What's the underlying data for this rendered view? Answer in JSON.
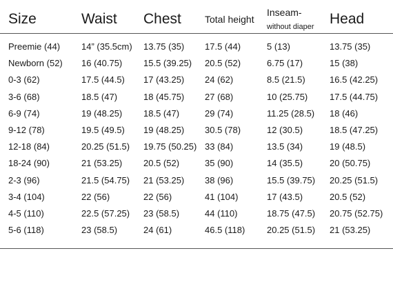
{
  "table": {
    "headers": [
      "Size",
      "Waist",
      "Chest",
      "Total height",
      [
        "Inseam-",
        "without diaper"
      ],
      "Head"
    ],
    "rows": [
      [
        "Preemie (44)",
        "14” (35.5cm)",
        "13.75 (35)",
        "17.5 (44)",
        "5 (13)",
        "13.75 (35)"
      ],
      [
        "Newborn (52)",
        "16 (40.75)",
        "15.5 (39.25)",
        "20.5 (52)",
        "6.75 (17)",
        "15 (38)"
      ],
      [
        "0-3 (62)",
        "17.5 (44.5)",
        "17 (43.25)",
        "24 (62)",
        "8.5 (21.5)",
        "16.5 (42.25)"
      ],
      [
        "3-6 (68)",
        "18.5 (47)",
        "18 (45.75)",
        "27 (68)",
        "10 (25.75)",
        "17.5 (44.75)"
      ],
      [
        "6-9 (74)",
        "19 (48.25)",
        "18.5 (47)",
        "29 (74)",
        "11.25 (28.5)",
        "18 (46)"
      ],
      [
        "9-12 (78)",
        "19.5 (49.5)",
        "19 (48.25)",
        "30.5 (78)",
        "12 (30.5)",
        "18.5 (47.25)"
      ],
      [
        "12-18 (84)",
        "20.25 (51.5)",
        "19.75 (50.25)",
        "33 (84)",
        "13.5 (34)",
        "19 (48.5)"
      ],
      [
        "18-24 (90)",
        "21 (53.25)",
        "20.5 (52)",
        "35 (90)",
        "14 (35.5)",
        "20 (50.75)"
      ],
      [
        "2-3 (96)",
        "21.5 (54.75)",
        "21 (53.25)",
        "38 (96)",
        "15.5 (39.75)",
        "20.25 (51.5)"
      ],
      [
        "3-4 (104)",
        "22 (56)",
        "22 (56)",
        "41 (104)",
        "17 (43.5)",
        "20.5 (52)"
      ],
      [
        "4-5 (110)",
        "22.5 (57.25)",
        "23 (58.5)",
        "44 (110)",
        "18.75 (47.5)",
        "20.75 (52.75)"
      ],
      [
        "5-6 (118)",
        "23 (58.5)",
        "24 (61)",
        "46.5 (118)",
        "20.25 (51.5)",
        "21 (53.25)"
      ]
    ]
  }
}
